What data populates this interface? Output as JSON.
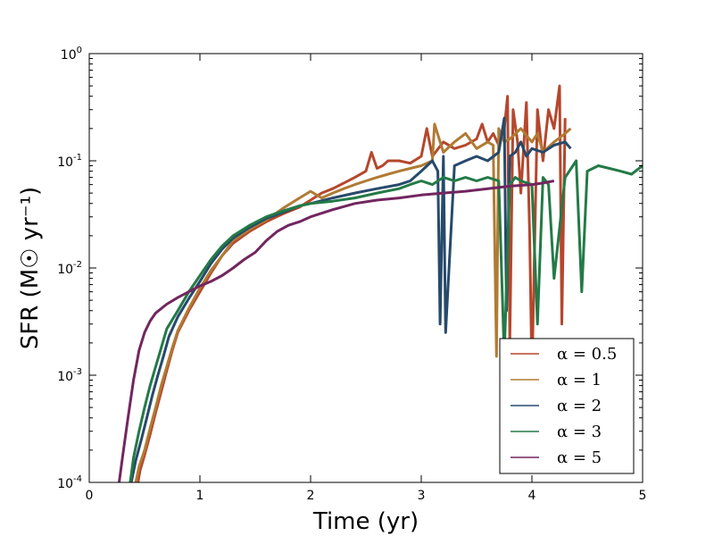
{
  "chart_data": {
    "type": "line",
    "title": "",
    "xlabel": "Time (yr)",
    "ylabel": "SFR (M☉ yr⁻¹)",
    "xlim": [
      0,
      5
    ],
    "ylim": [
      0.0001,
      1
    ],
    "yscale": "log",
    "grid": false,
    "legend_position": "lower-right",
    "x_ticks": [
      {
        "value": 0,
        "label": "0"
      },
      {
        "value": 1,
        "label": "1"
      },
      {
        "value": 2,
        "label": "2"
      },
      {
        "value": 3,
        "label": "3"
      },
      {
        "value": 4,
        "label": "4"
      },
      {
        "value": 5,
        "label": "5"
      }
    ],
    "y_ticks": [
      {
        "value": 0.0001,
        "base": "10",
        "exp": "-4"
      },
      {
        "value": 0.001,
        "base": "10",
        "exp": "-3"
      },
      {
        "value": 0.01,
        "base": "10",
        "exp": "-2"
      },
      {
        "value": 0.1,
        "base": "10",
        "exp": "-1"
      },
      {
        "value": 1,
        "base": "10",
        "exp": "0"
      }
    ],
    "series": [
      {
        "name": "α = 0.5",
        "color": "#b5472c",
        "x": [
          0.44,
          0.46,
          0.5,
          0.55,
          0.6,
          0.65,
          0.7,
          0.75,
          0.8,
          0.9,
          1.0,
          1.1,
          1.2,
          1.3,
          1.45,
          1.6,
          1.75,
          1.9,
          2.0,
          2.1,
          2.2,
          2.3,
          2.4,
          2.5,
          2.55,
          2.6,
          2.65,
          2.7,
          2.8,
          2.9,
          3.0,
          3.05,
          3.1,
          3.2,
          3.3,
          3.4,
          3.5,
          3.55,
          3.6,
          3.65,
          3.7,
          3.75,
          3.78,
          3.8,
          3.83,
          3.87,
          3.9,
          3.95,
          3.98,
          4.0,
          4.05,
          4.1,
          4.15,
          4.2,
          4.25,
          4.27,
          4.3
        ],
        "values": [
          0.0001,
          0.00013,
          0.00018,
          0.00028,
          0.00045,
          0.0007,
          0.0011,
          0.0017,
          0.0025,
          0.004,
          0.006,
          0.009,
          0.013,
          0.017,
          0.022,
          0.027,
          0.032,
          0.037,
          0.043,
          0.05,
          0.055,
          0.062,
          0.07,
          0.08,
          0.12,
          0.085,
          0.09,
          0.1,
          0.1,
          0.095,
          0.11,
          0.2,
          0.11,
          0.15,
          0.13,
          0.14,
          0.16,
          0.22,
          0.15,
          0.18,
          0.14,
          0.2,
          0.4,
          0.002,
          0.3,
          0.15,
          0.05,
          0.35,
          0.02,
          0.001,
          0.3,
          0.1,
          0.3,
          0.2,
          0.5,
          0.003,
          0.25
        ]
      },
      {
        "name": "α = 1",
        "color": "#b07b34",
        "x": [
          0.42,
          0.45,
          0.5,
          0.55,
          0.6,
          0.65,
          0.7,
          0.75,
          0.8,
          0.9,
          1.0,
          1.1,
          1.2,
          1.3,
          1.45,
          1.6,
          1.75,
          1.9,
          2.0,
          2.1,
          2.2,
          2.3,
          2.4,
          2.5,
          2.6,
          2.7,
          2.8,
          2.9,
          3.0,
          3.1,
          3.12,
          3.2,
          3.3,
          3.4,
          3.5,
          3.6,
          3.65,
          3.68,
          3.7,
          3.75,
          3.8,
          3.9,
          4.0,
          4.05,
          4.1,
          4.2,
          4.3,
          4.35
        ],
        "values": [
          0.0001,
          0.00014,
          0.0002,
          0.00032,
          0.0005,
          0.0008,
          0.0012,
          0.0018,
          0.0026,
          0.0042,
          0.0065,
          0.0095,
          0.013,
          0.018,
          0.023,
          0.028,
          0.036,
          0.045,
          0.052,
          0.045,
          0.05,
          0.055,
          0.06,
          0.065,
          0.07,
          0.075,
          0.08,
          0.085,
          0.09,
          0.1,
          0.22,
          0.12,
          0.15,
          0.18,
          0.13,
          0.15,
          0.14,
          0.0015,
          0.2,
          0.15,
          0.16,
          0.2,
          0.15,
          0.18,
          0.12,
          0.15,
          0.18,
          0.2
        ]
      },
      {
        "name": "α = 2",
        "color": "#274a6b",
        "x": [
          0.38,
          0.42,
          0.47,
          0.52,
          0.57,
          0.62,
          0.67,
          0.72,
          0.8,
          0.9,
          1.0,
          1.1,
          1.2,
          1.3,
          1.45,
          1.6,
          1.75,
          1.9,
          2.0,
          2.2,
          2.4,
          2.6,
          2.8,
          2.9,
          3.0,
          3.1,
          3.15,
          3.17,
          3.2,
          3.22,
          3.3,
          3.4,
          3.5,
          3.6,
          3.7,
          3.75,
          3.77,
          3.8,
          3.85,
          3.9,
          3.95,
          4.0,
          4.1,
          4.2,
          4.3,
          4.35
        ],
        "values": [
          0.0001,
          0.00016,
          0.00025,
          0.0004,
          0.00065,
          0.001,
          0.0015,
          0.0023,
          0.0035,
          0.0052,
          0.0075,
          0.011,
          0.015,
          0.019,
          0.024,
          0.029,
          0.033,
          0.038,
          0.04,
          0.045,
          0.05,
          0.055,
          0.06,
          0.065,
          0.08,
          0.1,
          0.08,
          0.003,
          0.11,
          0.0025,
          0.09,
          0.1,
          0.11,
          0.1,
          0.12,
          0.25,
          0.004,
          0.11,
          0.12,
          0.15,
          0.11,
          0.13,
          0.12,
          0.14,
          0.15,
          0.13
        ]
      },
      {
        "name": "α = 3",
        "color": "#247a47",
        "x": [
          0.37,
          0.4,
          0.45,
          0.5,
          0.55,
          0.6,
          0.65,
          0.7,
          0.8,
          0.9,
          1.0,
          1.1,
          1.2,
          1.3,
          1.45,
          1.6,
          1.75,
          1.9,
          2.0,
          2.2,
          2.4,
          2.6,
          2.8,
          2.9,
          3.0,
          3.1,
          3.2,
          3.3,
          3.4,
          3.5,
          3.6,
          3.7,
          3.75,
          3.8,
          3.85,
          3.9,
          4.0,
          4.05,
          4.1,
          4.15,
          4.2,
          4.3,
          4.4,
          4.45,
          4.5,
          4.6,
          4.7,
          4.8,
          4.9,
          5.0
        ],
        "values": [
          0.0001,
          0.00017,
          0.0003,
          0.0005,
          0.0008,
          0.0012,
          0.0018,
          0.0027,
          0.004,
          0.006,
          0.0085,
          0.012,
          0.016,
          0.02,
          0.025,
          0.03,
          0.034,
          0.038,
          0.04,
          0.042,
          0.045,
          0.05,
          0.055,
          0.06,
          0.065,
          0.06,
          0.07,
          0.065,
          0.07,
          0.065,
          0.07,
          0.065,
          0.0015,
          0.06,
          0.07,
          0.065,
          0.06,
          0.003,
          0.07,
          0.06,
          0.008,
          0.07,
          0.1,
          0.006,
          0.08,
          0.09,
          0.085,
          0.08,
          0.075,
          0.09
        ]
      },
      {
        "name": "α = 5",
        "color": "#72265f",
        "x": [
          0.27,
          0.3,
          0.35,
          0.4,
          0.45,
          0.5,
          0.55,
          0.6,
          0.7,
          0.8,
          0.9,
          1.0,
          1.1,
          1.2,
          1.3,
          1.4,
          1.5,
          1.6,
          1.7,
          1.8,
          1.9,
          2.0,
          2.2,
          2.4,
          2.6,
          2.8,
          3.0,
          3.2,
          3.4,
          3.6,
          3.8,
          4.0,
          4.1,
          4.2
        ],
        "values": [
          0.0001,
          0.00017,
          0.0004,
          0.0009,
          0.0017,
          0.0025,
          0.0032,
          0.0038,
          0.0046,
          0.0053,
          0.006,
          0.0068,
          0.0075,
          0.0085,
          0.01,
          0.012,
          0.014,
          0.018,
          0.022,
          0.025,
          0.027,
          0.03,
          0.035,
          0.04,
          0.043,
          0.045,
          0.048,
          0.05,
          0.052,
          0.055,
          0.058,
          0.06,
          0.062,
          0.065
        ]
      }
    ]
  }
}
